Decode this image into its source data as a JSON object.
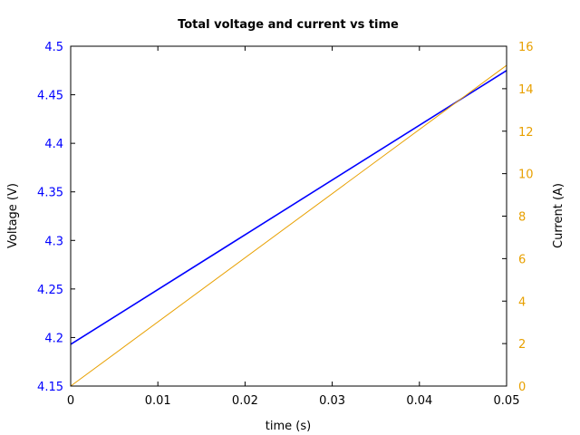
{
  "chart_data": {
    "type": "line",
    "title": "Total voltage and current vs time",
    "xlabel": "time (s)",
    "ylabel_left": "Voltage (V)",
    "ylabel_right": "Current (A)",
    "xlim": [
      0,
      0.05
    ],
    "ylim_left": [
      4.15,
      4.5
    ],
    "ylim_right": [
      0,
      16
    ],
    "x_ticks": [
      "0",
      "0.01",
      "0.02",
      "0.03",
      "0.04",
      "0.05"
    ],
    "x_tick_values": [
      0,
      0.01,
      0.02,
      0.03,
      0.04,
      0.05
    ],
    "y_left_ticks": [
      "4.15",
      "4.2",
      "4.25",
      "4.3",
      "4.35",
      "4.4",
      "4.45",
      "4.5"
    ],
    "y_left_tick_values": [
      4.15,
      4.2,
      4.25,
      4.3,
      4.35,
      4.4,
      4.45,
      4.5
    ],
    "y_right_ticks": [
      "0",
      "2",
      "4",
      "6",
      "8",
      "10",
      "12",
      "14",
      "16"
    ],
    "y_right_tick_values": [
      0,
      2,
      4,
      6,
      8,
      10,
      12,
      14,
      16
    ],
    "grid": false,
    "series": [
      {
        "axis": "left",
        "color": "#0000ff",
        "x": [
          0,
          0.05
        ],
        "values": [
          4.193,
          4.475
        ]
      },
      {
        "axis": "right",
        "color": "#e8a000",
        "x": [
          0,
          0.05
        ],
        "values": [
          0,
          15.1
        ]
      }
    ],
    "colors": {
      "left_axis": "#0000ff",
      "right_axis": "#e8a000",
      "frame": "#000000"
    }
  }
}
